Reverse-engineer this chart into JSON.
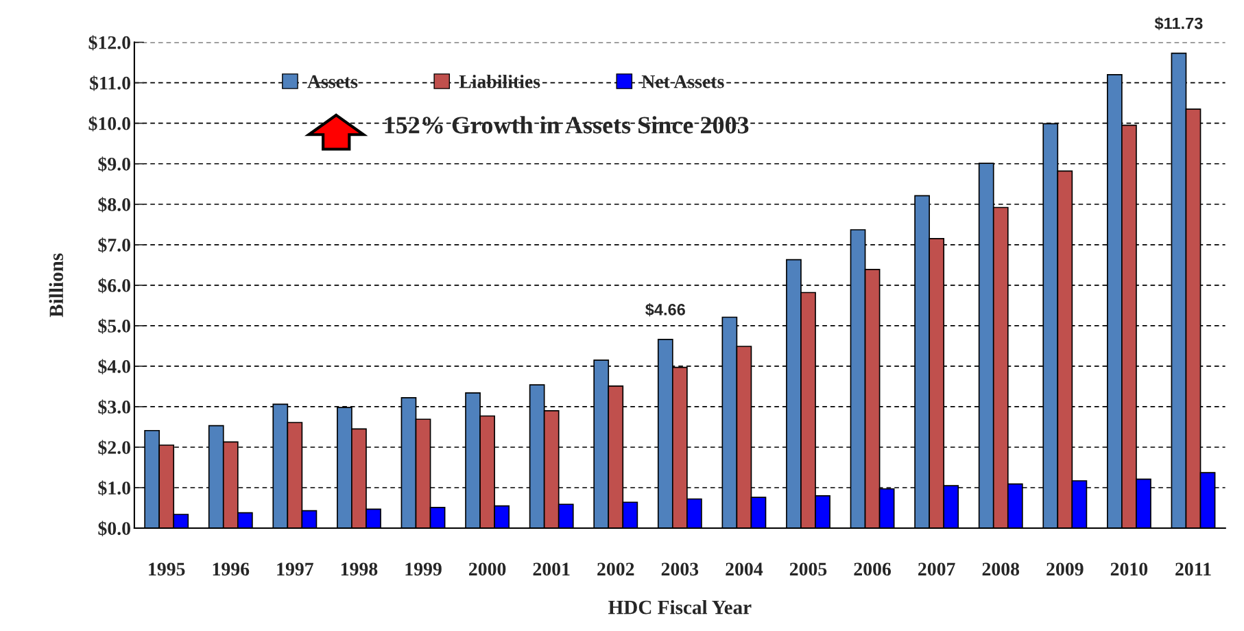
{
  "chart_data": {
    "type": "bar",
    "xlabel": "HDC Fiscal Year",
    "ylabel": "Billions",
    "categories": [
      "1995",
      "1996",
      "1997",
      "1998",
      "1999",
      "2000",
      "2001",
      "2002",
      "2003",
      "2004",
      "2005",
      "2006",
      "2007",
      "2008",
      "2009",
      "2010",
      "2011"
    ],
    "series": [
      {
        "name": "Assets",
        "color": "#4f81bd",
        "values": [
          2.41,
          2.53,
          3.06,
          2.98,
          3.22,
          3.34,
          3.54,
          4.15,
          4.66,
          5.21,
          6.63,
          7.37,
          8.21,
          9.01,
          9.99,
          11.2,
          11.73
        ],
        "value_labels": [
          null,
          null,
          null,
          null,
          null,
          null,
          null,
          null,
          "$4.66",
          null,
          null,
          null,
          null,
          null,
          null,
          null,
          "$11.73"
        ]
      },
      {
        "name": "Liabilities",
        "color": "#c0504d",
        "values": [
          2.05,
          2.13,
          2.61,
          2.45,
          2.69,
          2.77,
          2.9,
          3.51,
          3.97,
          4.49,
          5.82,
          6.39,
          7.15,
          7.92,
          8.82,
          9.95,
          10.35
        ]
      },
      {
        "name": "Net Assets",
        "color": "#0000ff",
        "values": [
          0.34,
          0.38,
          0.43,
          0.47,
          0.51,
          0.55,
          0.59,
          0.64,
          0.72,
          0.76,
          0.8,
          0.97,
          1.05,
          1.09,
          1.17,
          1.21,
          1.37
        ]
      }
    ],
    "ylim": [
      0,
      12
    ],
    "yticks": [
      {
        "value": 0,
        "label": "$0.0"
      },
      {
        "value": 1,
        "label": "$1.0"
      },
      {
        "value": 2,
        "label": "$2.0"
      },
      {
        "value": 3,
        "label": "$3.0"
      },
      {
        "value": 4,
        "label": "$4.0"
      },
      {
        "value": 5,
        "label": "$5.0"
      },
      {
        "value": 6,
        "label": "$6.0"
      },
      {
        "value": 7,
        "label": "$7.0"
      },
      {
        "value": 8,
        "label": "$8.0"
      },
      {
        "value": 9,
        "label": "$9.0"
      },
      {
        "value": 10,
        "label": "$10.0"
      },
      {
        "value": 11,
        "label": "$11.0"
      },
      {
        "value": 12,
        "label": "$12.0"
      }
    ],
    "grid": "y",
    "line_style": "dashed",
    "legend": "top",
    "annotations": [
      "152% Growth in Assets Since 2003"
    ]
  }
}
